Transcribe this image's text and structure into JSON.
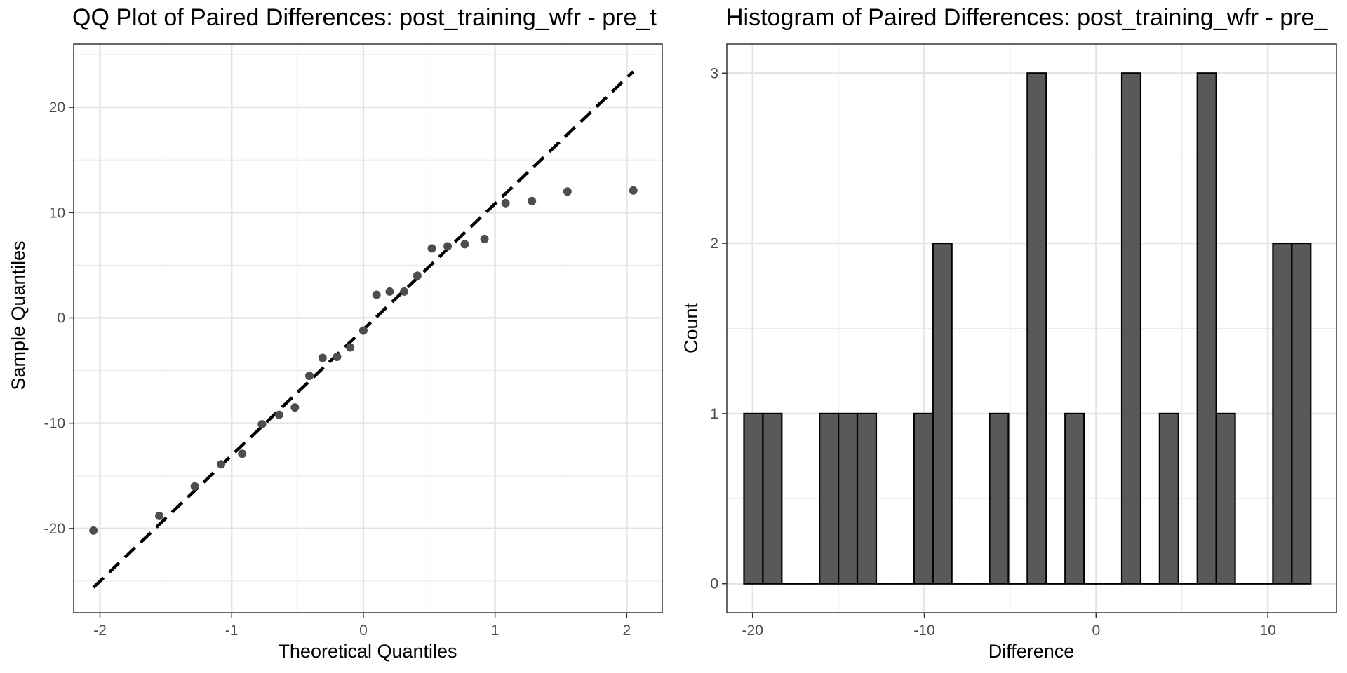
{
  "chart_data": [
    {
      "type": "scatter",
      "title": "QQ Plot of Paired Differences: post_training_wfr - pre_t",
      "xlabel": "Theoretical Quantiles",
      "ylabel": "Sample Quantiles",
      "xlim": [
        -2.2,
        2.27
      ],
      "ylim": [
        -28,
        26
      ],
      "xticks": [
        -2,
        -1,
        0,
        1,
        2
      ],
      "xtick_labels": [
        "-2",
        "-1",
        "0",
        "1",
        "2"
      ],
      "yticks": [
        -20,
        -10,
        0,
        10,
        20
      ],
      "ytick_labels": [
        "-20",
        "-10",
        "0",
        "10",
        "20"
      ],
      "grid": true,
      "point_color": "#4d4d4d",
      "reference_line": {
        "style": "dashed",
        "color": "#000000",
        "x": [
          -2.05,
          2.05
        ],
        "y": [
          -25.6,
          23.4
        ]
      },
      "points": [
        {
          "x": -2.05,
          "y": -20.2
        },
        {
          "x": -1.55,
          "y": -18.8
        },
        {
          "x": -1.28,
          "y": -16.0
        },
        {
          "x": -1.08,
          "y": -13.9
        },
        {
          "x": -0.92,
          "y": -12.9
        },
        {
          "x": -0.77,
          "y": -10.1
        },
        {
          "x": -0.64,
          "y": -9.2
        },
        {
          "x": -0.52,
          "y": -8.5
        },
        {
          "x": -0.41,
          "y": -5.5
        },
        {
          "x": -0.31,
          "y": -3.8
        },
        {
          "x": -0.2,
          "y": -3.7
        },
        {
          "x": -0.1,
          "y": -2.8
        },
        {
          "x": 0.0,
          "y": -1.2
        },
        {
          "x": 0.1,
          "y": 2.2
        },
        {
          "x": 0.2,
          "y": 2.5
        },
        {
          "x": 0.31,
          "y": 2.5
        },
        {
          "x": 0.41,
          "y": 4.0
        },
        {
          "x": 0.52,
          "y": 6.6
        },
        {
          "x": 0.64,
          "y": 6.8
        },
        {
          "x": 0.77,
          "y": 7.0
        },
        {
          "x": 0.92,
          "y": 7.5
        },
        {
          "x": 1.08,
          "y": 10.9
        },
        {
          "x": 1.28,
          "y": 11.1
        },
        {
          "x": 1.55,
          "y": 12.0
        },
        {
          "x": 2.05,
          "y": 12.1
        }
      ]
    },
    {
      "type": "bar",
      "title": "Histogram of Paired Differences: post_training_wfr - pre_",
      "xlabel": "Difference",
      "ylabel": "Count",
      "xlim": [
        -21.5,
        14.0
      ],
      "ylim": [
        -0.17,
        3.17
      ],
      "xticks": [
        -20,
        -10,
        0,
        10
      ],
      "xtick_labels": [
        "-20",
        "-10",
        "0",
        "10"
      ],
      "yticks": [
        0,
        1,
        2,
        3
      ],
      "ytick_labels": [
        "0",
        "1",
        "2",
        "3"
      ],
      "grid": true,
      "bar_fill": "#595959",
      "bar_edge": "#000000",
      "bin_width": 1.1,
      "bins": [
        {
          "center": -19.95,
          "count": 1
        },
        {
          "center": -18.85,
          "count": 1
        },
        {
          "center": -17.75,
          "count": 0
        },
        {
          "center": -16.65,
          "count": 0
        },
        {
          "center": -15.55,
          "count": 1
        },
        {
          "center": -14.45,
          "count": 1
        },
        {
          "center": -13.35,
          "count": 1
        },
        {
          "center": -12.25,
          "count": 0
        },
        {
          "center": -11.15,
          "count": 0
        },
        {
          "center": -10.05,
          "count": 1
        },
        {
          "center": -8.95,
          "count": 2
        },
        {
          "center": -7.85,
          "count": 0
        },
        {
          "center": -6.75,
          "count": 0
        },
        {
          "center": -5.65,
          "count": 1
        },
        {
          "center": -4.55,
          "count": 0
        },
        {
          "center": -3.45,
          "count": 3
        },
        {
          "center": -2.35,
          "count": 0
        },
        {
          "center": -1.25,
          "count": 1
        },
        {
          "center": -0.15,
          "count": 0
        },
        {
          "center": 0.95,
          "count": 0
        },
        {
          "center": 2.05,
          "count": 3
        },
        {
          "center": 3.15,
          "count": 0
        },
        {
          "center": 4.25,
          "count": 1
        },
        {
          "center": 5.35,
          "count": 0
        },
        {
          "center": 6.45,
          "count": 3
        },
        {
          "center": 7.55,
          "count": 1
        },
        {
          "center": 8.65,
          "count": 0
        },
        {
          "center": 9.75,
          "count": 0
        },
        {
          "center": 10.85,
          "count": 2
        },
        {
          "center": 11.95,
          "count": 2
        }
      ]
    }
  ]
}
